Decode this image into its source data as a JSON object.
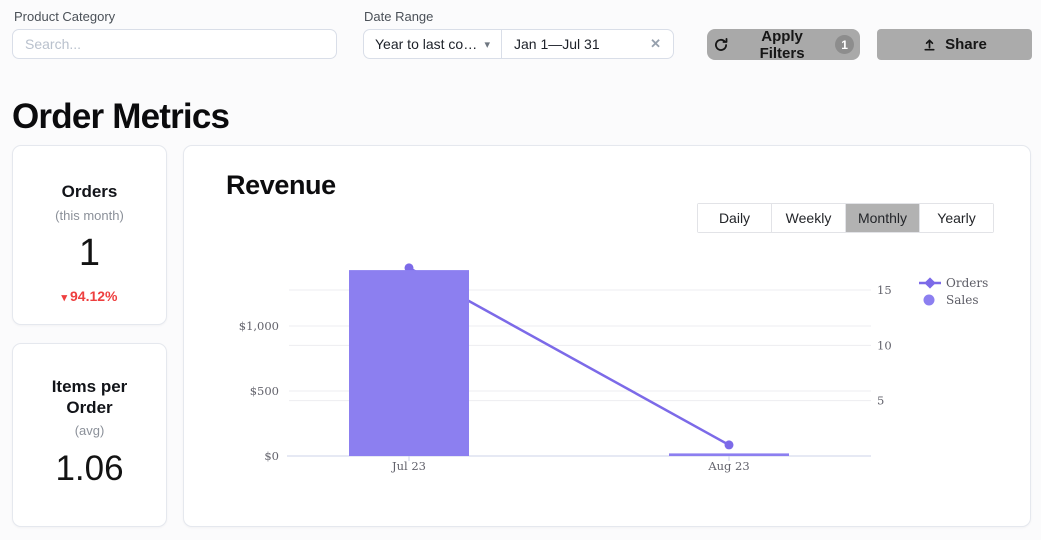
{
  "filters": {
    "product_category_label": "Product Category",
    "search_placeholder": "Search...",
    "date_range_label": "Date Range",
    "date_preset": "Year to last co…",
    "date_value": "Jan 1—Jul 31",
    "apply_label": "Apply Filters",
    "apply_badge": "1",
    "share_label": "Share"
  },
  "icons": {
    "caret_down": "▾",
    "clear": "✕",
    "delta_down": "▾"
  },
  "page_title": "Order Metrics",
  "stat_cards": [
    {
      "title": "Orders",
      "subtitle": "(this month)",
      "value": "1",
      "delta": "94.12%",
      "delta_direction": "down"
    },
    {
      "title": "Items per Order",
      "subtitle": "(avg)",
      "value": "1.06"
    }
  ],
  "revenue_panel": {
    "title": "Revenue",
    "tabs": [
      "Daily",
      "Weekly",
      "Monthly",
      "Yearly"
    ],
    "active_tab": "Monthly"
  },
  "chart_data": {
    "type": "bar+line combo",
    "title": "Revenue",
    "categories": [
      "Jul 23",
      "Aug 23"
    ],
    "series": [
      {
        "name": "Sales",
        "type": "bar",
        "axis": "left",
        "color": "#8c7ff0",
        "values": [
          1430,
          20
        ]
      },
      {
        "name": "Orders",
        "type": "line",
        "axis": "right",
        "color": "#7c6ae8",
        "values": [
          17,
          1
        ]
      }
    ],
    "left_axis": {
      "tick_labels": [
        "$0",
        "$500",
        "$1,000"
      ],
      "tick_values": [
        0,
        500,
        1000
      ],
      "range": [
        0,
        1580
      ]
    },
    "right_axis": {
      "tick_labels": [
        "5",
        "10",
        "15"
      ],
      "tick_values": [
        5,
        10,
        15
      ],
      "range": [
        0,
        18.5
      ]
    },
    "legend": {
      "position": "right",
      "entries": [
        "Orders",
        "Sales"
      ]
    },
    "grid": true
  },
  "colors": {
    "accent_purple": "#8c7ff0",
    "line_purple": "#7c6ae8",
    "delta_red": "#ee3f3f",
    "button_gray": "#a9a9a9",
    "badge_gray": "#8d8d8d",
    "tab_selected_gray": "#b2b2b2"
  }
}
